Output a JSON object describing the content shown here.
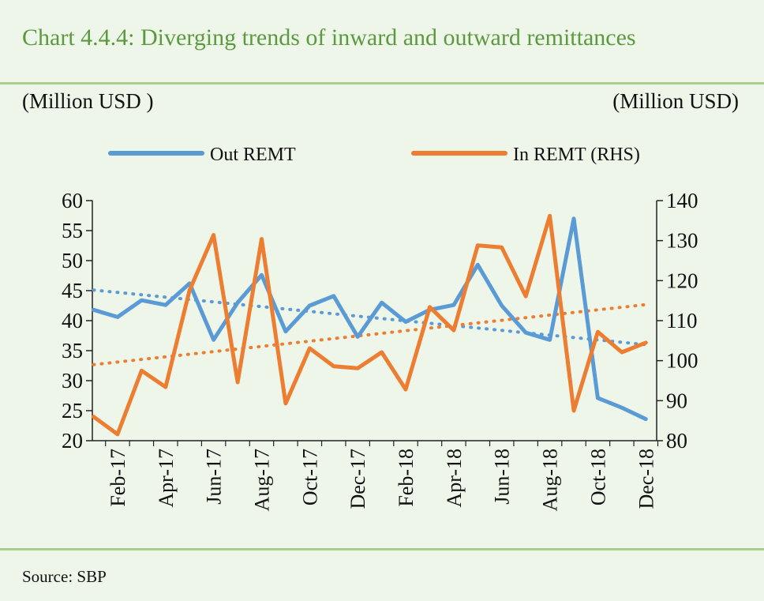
{
  "title": "Chart 4.4.4: Diverging trends of inward and outward remittances",
  "left_unit": "(Million USD )",
  "right_unit": "(Million USD)",
  "source": "Source:  SBP",
  "colors": {
    "out": "#5b9bd5",
    "in": "#ed7d31",
    "rule": "#a9cf8e",
    "title": "#5b9a3f"
  },
  "chart_data": {
    "type": "line",
    "x": [
      "Jan-17",
      "Feb-17",
      "Mar-17",
      "Apr-17",
      "May-17",
      "Jun-17",
      "Jul-17",
      "Aug-17",
      "Sep-17",
      "Oct-17",
      "Nov-17",
      "Dec-17",
      "Jan-18",
      "Feb-18",
      "Mar-18",
      "Apr-18",
      "May-18",
      "Jun-18",
      "Jul-18",
      "Aug-18",
      "Sep-18",
      "Oct-18",
      "Nov-18",
      "Dec-18"
    ],
    "xticks": [
      "Feb-17",
      "Apr-17",
      "Jun-17",
      "Aug-17",
      "Oct-17",
      "Dec-17",
      "Feb-18",
      "Apr-18",
      "Jun-18",
      "Aug-18",
      "Oct-18",
      "Dec-18"
    ],
    "series": [
      {
        "name": "Out REMT",
        "axis": "left",
        "values": [
          41.8,
          40.6,
          43.4,
          42.6,
          46.2,
          36.8,
          43.0,
          47.6,
          38.2,
          42.5,
          44.1,
          37.3,
          43.0,
          39.8,
          41.8,
          42.6,
          49.3,
          42.5,
          38.0,
          36.8,
          57.0,
          27.1,
          25.5,
          23.6
        ],
        "trend": [
          45.1,
          36.0
        ]
      },
      {
        "name": "In REMT (RHS)",
        "axis": "right",
        "values": [
          86.0,
          81.6,
          97.5,
          93.4,
          117.6,
          131.4,
          94.6,
          130.4,
          89.3,
          103.1,
          98.6,
          98.1,
          102.1,
          92.8,
          113.4,
          107.6,
          128.8,
          128.3,
          116.1,
          136.2,
          87.5,
          107.2,
          102.1,
          104.5
        ],
        "trend": [
          99.0,
          114.0
        ]
      }
    ],
    "ylim_left": [
      20,
      60
    ],
    "yticks_left": [
      "20",
      "25",
      "30",
      "35",
      "40",
      "45",
      "50",
      "55",
      "60"
    ],
    "ylim_right": [
      80,
      140
    ],
    "yticks_right": [
      "80",
      "90",
      "100",
      "110",
      "120",
      "130",
      "140"
    ],
    "legend_position": "top-center",
    "grid": false
  }
}
